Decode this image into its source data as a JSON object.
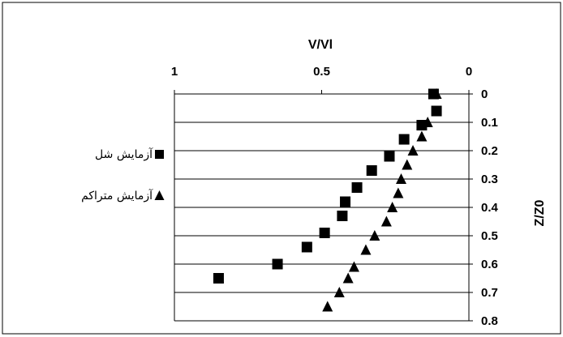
{
  "chart_data": {
    "type": "scatter",
    "xlabel": "V/Vl",
    "ylabel": "Z/Z0",
    "xlim": [
      1,
      0
    ],
    "ylim": [
      0,
      0.8
    ],
    "x_ticks": [
      "1",
      "0.5",
      "0"
    ],
    "y_ticks": [
      "0",
      "0.1",
      "0.2",
      "0.3",
      "0.4",
      "0.5",
      "0.6",
      "0.7",
      "0.8"
    ],
    "x_axis_position": "top",
    "y_axis_position": "right",
    "grid": "horizontal",
    "legend_position": "left",
    "series": [
      {
        "name": "آزمایش شل",
        "marker": "square",
        "points": [
          {
            "x": 0.12,
            "y": 0.0
          },
          {
            "x": 0.11,
            "y": 0.06
          },
          {
            "x": 0.16,
            "y": 0.11
          },
          {
            "x": 0.22,
            "y": 0.16
          },
          {
            "x": 0.27,
            "y": 0.22
          },
          {
            "x": 0.33,
            "y": 0.27
          },
          {
            "x": 0.38,
            "y": 0.33
          },
          {
            "x": 0.42,
            "y": 0.38
          },
          {
            "x": 0.43,
            "y": 0.43
          },
          {
            "x": 0.49,
            "y": 0.49
          },
          {
            "x": 0.55,
            "y": 0.54
          },
          {
            "x": 0.65,
            "y": 0.6
          },
          {
            "x": 0.85,
            "y": 0.65
          }
        ]
      },
      {
        "name": "آزمایش متراکم",
        "marker": "triangle",
        "points": [
          {
            "x": 0.11,
            "y": 0.0
          },
          {
            "x": 0.14,
            "y": 0.1
          },
          {
            "x": 0.16,
            "y": 0.15
          },
          {
            "x": 0.19,
            "y": 0.2
          },
          {
            "x": 0.21,
            "y": 0.25
          },
          {
            "x": 0.23,
            "y": 0.3
          },
          {
            "x": 0.24,
            "y": 0.35
          },
          {
            "x": 0.26,
            "y": 0.4
          },
          {
            "x": 0.28,
            "y": 0.45
          },
          {
            "x": 0.32,
            "y": 0.5
          },
          {
            "x": 0.35,
            "y": 0.55
          },
          {
            "x": 0.39,
            "y": 0.61
          },
          {
            "x": 0.41,
            "y": 0.65
          },
          {
            "x": 0.44,
            "y": 0.7
          },
          {
            "x": 0.48,
            "y": 0.75
          }
        ]
      }
    ],
    "colors": {
      "marker": "#000000",
      "grid": "#000000",
      "border": "#000000"
    }
  }
}
